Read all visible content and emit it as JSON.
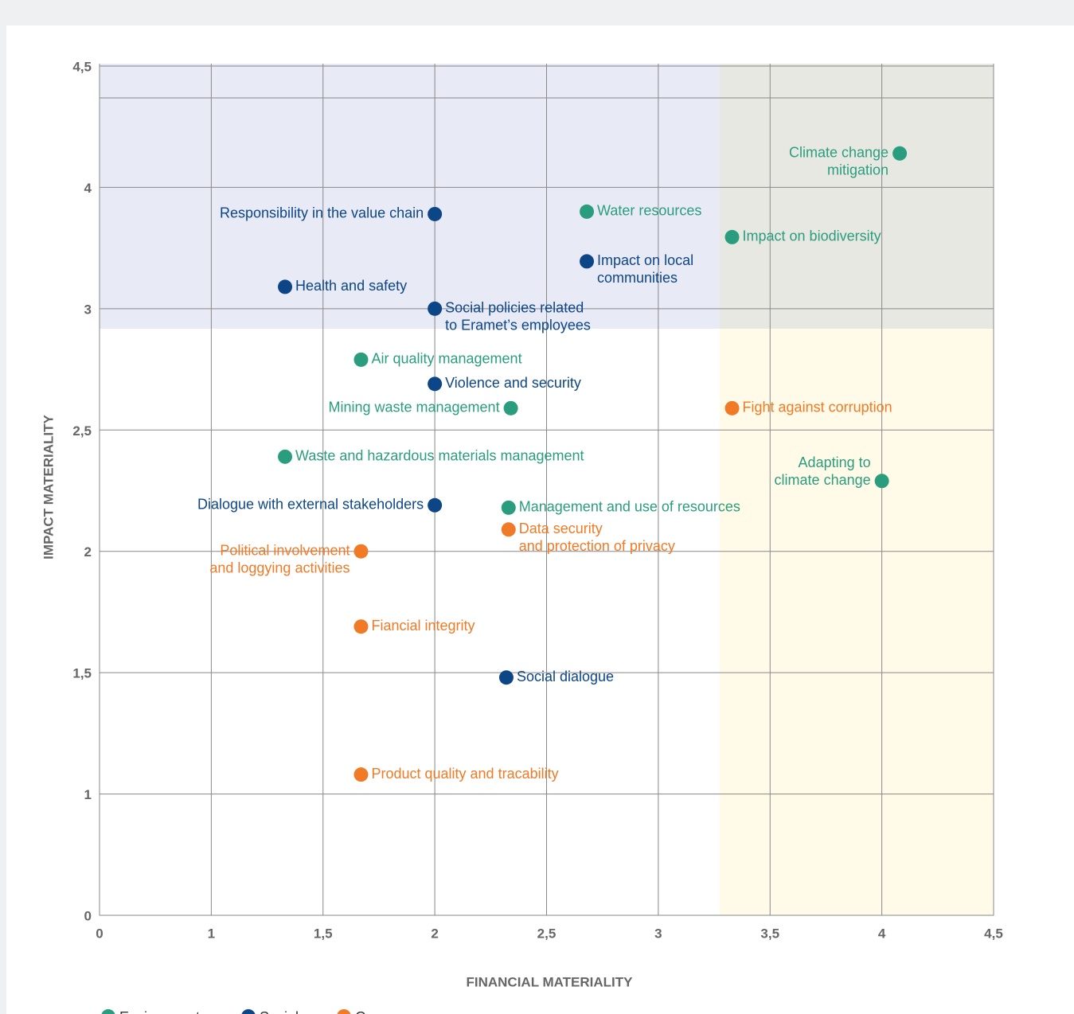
{
  "chart_data": {
    "type": "scatter",
    "xlabel": "FINANCIAL MATERIALITY",
    "ylabel": "IMPACT MATERIALITY",
    "xlim": [
      0,
      4.5
    ],
    "ylim": [
      0,
      4.5
    ],
    "xticks": [
      0,
      1,
      {
        "value": 1.5,
        "label": "1,5"
      },
      2,
      {
        "value": 2.5,
        "label": "2,5"
      },
      3,
      {
        "value": 3.5,
        "label": "3,5"
      },
      4,
      {
        "value": 4.5,
        "label": "4,5"
      }
    ],
    "yticks": [
      0,
      1,
      {
        "value": 1.5,
        "label": "1,5"
      },
      2,
      {
        "value": 2.5,
        "label": "2,5"
      },
      3,
      4,
      {
        "value": 4.5,
        "label": "4,5"
      }
    ],
    "grid": true,
    "series": [
      {
        "name": "Environment",
        "color": "#2a9d7f",
        "points": [
          {
            "label": [
              "Climate change",
              "mitigation"
            ],
            "x": 4.08,
            "y": 4.14
          },
          {
            "label": [
              "Water resources"
            ],
            "x": 2.68,
            "y": 3.8
          },
          {
            "label": [
              "Impact on biodiversity"
            ],
            "x": 3.33,
            "y": 3.59
          },
          {
            "label": [
              "Air quality management"
            ],
            "x": 1.67,
            "y": 2.79
          },
          {
            "label": [
              "Mining waste management"
            ],
            "x": 2.34,
            "y": 2.59
          },
          {
            "label": [
              "Waste and hazardous materials management"
            ],
            "x": 1.33,
            "y": 2.39
          },
          {
            "label": [
              "Adapting to",
              "climate change"
            ],
            "x": 4,
            "y": 2.29
          },
          {
            "label": [
              "Management and use of resources"
            ],
            "x": 2.33,
            "y": 2.18
          }
        ]
      },
      {
        "name": "Social",
        "color": "#0d4687",
        "points": [
          {
            "label": [
              "Responsibility in the value chain"
            ],
            "x": 2,
            "y": 3.78
          },
          {
            "label": [
              "Impact on local",
              "communities"
            ],
            "x": 2.68,
            "y": 3.39
          },
          {
            "label": [
              "Health and safety"
            ],
            "x": 1.33,
            "y": 3.18
          },
          {
            "label": [
              "Social policies related",
              "to Eramet’s employees"
            ],
            "x": 2,
            "y": 3
          },
          {
            "label": [
              "Violence and security"
            ],
            "x": 2,
            "y": 2.69
          },
          {
            "label": [
              "Dialogue with external stakeholders"
            ],
            "x": 2,
            "y": 2.19
          },
          {
            "label": [
              "Social dialogue"
            ],
            "x": 2.32,
            "y": 1.48
          }
        ]
      },
      {
        "name": "Governance",
        "color": "#f07a26",
        "points": [
          {
            "label": [
              "Fight against corruption"
            ],
            "x": 3.33,
            "y": 2.59
          },
          {
            "label": [
              "Data security",
              "and protection of privacy"
            ],
            "x": 2.33,
            "y": 2.09
          },
          {
            "label": [
              "Political involvement",
              "and loggying activities"
            ],
            "x": 1.67,
            "y": 2
          },
          {
            "label": [
              "Fiancial integrity"
            ],
            "x": 1.67,
            "y": 1.69
          },
          {
            "label": [
              "Product quality and tracability"
            ],
            "x": 1.67,
            "y": 1.08
          }
        ]
      }
    ]
  }
}
